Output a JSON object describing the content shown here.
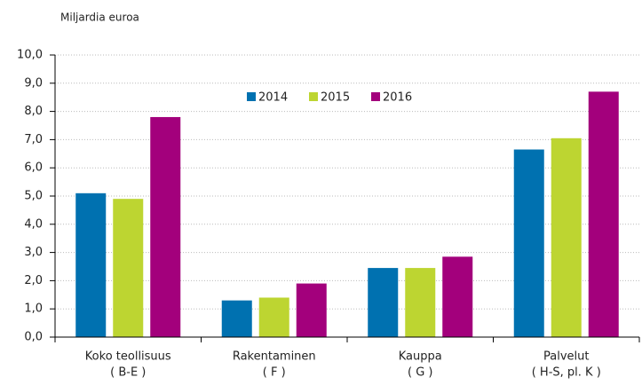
{
  "chart_data": {
    "type": "bar",
    "y_axis_label": "Miljardia euroa",
    "categories": [
      [
        "Koko teollisuus",
        "( B-E )"
      ],
      [
        "Rakentaminen",
        "( F )"
      ],
      [
        "Kauppa",
        "( G )"
      ],
      [
        "Palvelut",
        "( H-S, pl. K )"
      ]
    ],
    "series": [
      {
        "name": "2014",
        "color": "#0071b0",
        "values": [
          5.1,
          1.3,
          2.45,
          6.65
        ]
      },
      {
        "name": "2015",
        "color": "#bdd531",
        "values": [
          4.9,
          1.4,
          2.45,
          7.05
        ]
      },
      {
        "name": "2016",
        "color": "#a3007c",
        "values": [
          7.8,
          1.9,
          2.85,
          8.7
        ]
      }
    ],
    "ylim": [
      0,
      10
    ],
    "yticks": [
      {
        "value": 0,
        "label": "0,0"
      },
      {
        "value": 1,
        "label": "1,0"
      },
      {
        "value": 2,
        "label": "2,0"
      },
      {
        "value": 3,
        "label": "3,0"
      },
      {
        "value": 4,
        "label": "4,0"
      },
      {
        "value": 5,
        "label": "5,0"
      },
      {
        "value": 6,
        "label": "6,0"
      },
      {
        "value": 7,
        "label": "7,0"
      },
      {
        "value": 8,
        "label": "8,0"
      },
      {
        "value": 9,
        "label": "9,0"
      },
      {
        "value": 10,
        "label": "10,0"
      }
    ],
    "grid": true
  }
}
